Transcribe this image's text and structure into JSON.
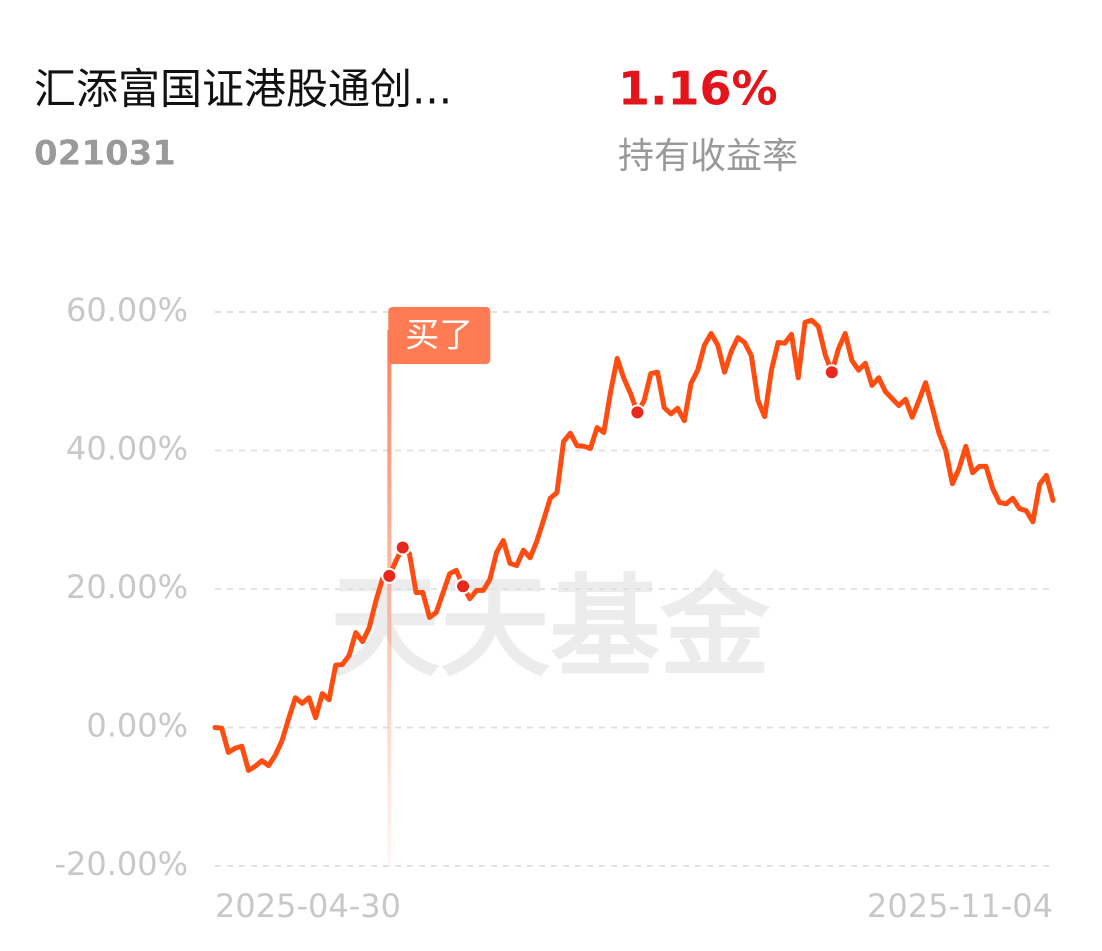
{
  "header": {
    "title": "汇添富国证港股通创...",
    "code": "021031",
    "return": "1.16%",
    "return_label": "持有收益率"
  },
  "chart_data": {
    "type": "line",
    "watermark": "天天基金",
    "categories": [
      "2025-04-30",
      null,
      null,
      null,
      null,
      null,
      null,
      null,
      null,
      null,
      null,
      null,
      null,
      null,
      null,
      null,
      null,
      null,
      null,
      null,
      null,
      null,
      null,
      null,
      null,
      null,
      null,
      null,
      null,
      null,
      null,
      null,
      null,
      null,
      null,
      null,
      null,
      null,
      null,
      null,
      null,
      null,
      null,
      null,
      null,
      null,
      null,
      null,
      null,
      null,
      null,
      null,
      null,
      null,
      null,
      null,
      null,
      null,
      null,
      null,
      null,
      null,
      null,
      null,
      null,
      null,
      null,
      null,
      null,
      null,
      null,
      null,
      null,
      null,
      null,
      null,
      null,
      null,
      null,
      null,
      null,
      null,
      null,
      null,
      null,
      null,
      null,
      null,
      null,
      null,
      null,
      null,
      null,
      null,
      null,
      null,
      null,
      null,
      null,
      null,
      null,
      null,
      null,
      null,
      null,
      null,
      null,
      null,
      null,
      null,
      null,
      null,
      null,
      null,
      null,
      null,
      null,
      null,
      null,
      null,
      null,
      null,
      null,
      null,
      null,
      "2025-11-04"
    ],
    "series": [
      {
        "color": "#ff4d12",
        "values": [
          0.0,
          -0.1,
          -3.6,
          -3.0,
          -2.7,
          -6.2,
          -5.6,
          -4.8,
          -5.5,
          -4.0,
          -1.9,
          1.3,
          4.3,
          3.5,
          4.3,
          1.4,
          4.9,
          4.0,
          9.0,
          9.1,
          10.4,
          13.7,
          12.4,
          14.4,
          18.3,
          21.5,
          21.9,
          24.1,
          26.0,
          25.1,
          19.5,
          19.5,
          15.9,
          16.6,
          19.4,
          22.2,
          22.7,
          20.4,
          18.6,
          19.8,
          19.8,
          21.4,
          25.3,
          27.0,
          23.7,
          23.4,
          25.6,
          24.5,
          26.9,
          29.9,
          33.1,
          33.9,
          41.3,
          42.5,
          40.7,
          40.6,
          40.3,
          43.3,
          42.6,
          48.4,
          53.3,
          50.4,
          48.2,
          45.5,
          47.2,
          51.1,
          51.3,
          46.2,
          45.3,
          46.1,
          44.3,
          49.7,
          51.6,
          55.2,
          56.9,
          55.2,
          51.3,
          54.3,
          56.3,
          55.6,
          53.7,
          47.2,
          44.9,
          51.6,
          55.6,
          55.5,
          56.8,
          50.5,
          58.5,
          58.8,
          57.9,
          53.9,
          51.3,
          54.7,
          56.9,
          53.0,
          51.6,
          52.6,
          49.4,
          50.5,
          48.5,
          47.5,
          46.5,
          47.4,
          44.8,
          47.2,
          49.8,
          46.2,
          42.5,
          40.0,
          35.2,
          37.4,
          40.6,
          36.8,
          37.7,
          37.7,
          34.5,
          32.5,
          32.3,
          33.1,
          31.6,
          31.3,
          29.7,
          35.1,
          36.4,
          32.8
        ]
      }
    ],
    "dot_color": "#e8271d",
    "dot_indices": [
      26,
      28,
      37,
      63,
      92
    ],
    "annotation": {
      "text": "买了",
      "index": 26,
      "color": "#ff7b54"
    },
    "ylim": [
      -20,
      60
    ],
    "yticks": [
      {
        "value": -20,
        "label": "-20.00%"
      },
      {
        "value": 0,
        "label": "0.00%"
      },
      {
        "value": 20,
        "label": "20.00%"
      },
      {
        "value": 40,
        "label": "40.00%"
      },
      {
        "value": 60,
        "label": "60.00%"
      }
    ],
    "grid": true
  }
}
